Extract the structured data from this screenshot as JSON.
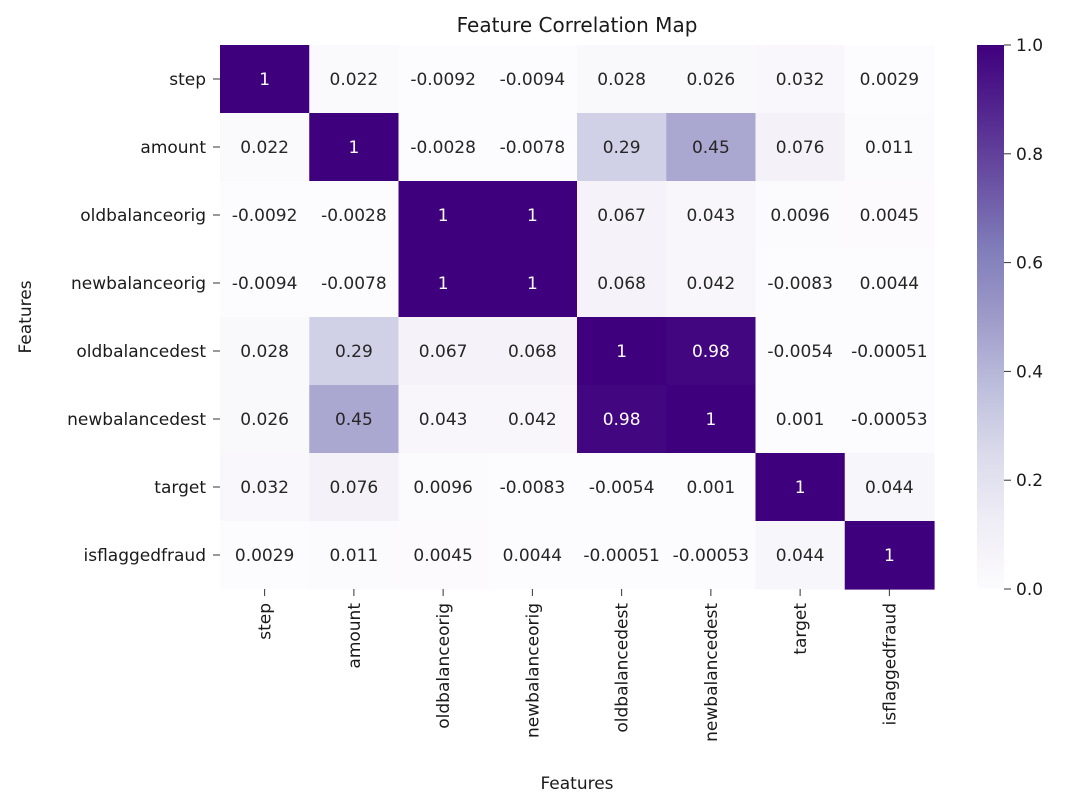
{
  "chart_data": {
    "type": "heatmap",
    "title": "Feature Correlation Map",
    "xlabel": "Features",
    "ylabel": "Features",
    "rows": [
      "step",
      "amount",
      "oldbalanceorig",
      "newbalanceorig",
      "oldbalancedest",
      "newbalancedest",
      "target",
      "isflaggedfraud"
    ],
    "cols": [
      "step",
      "amount",
      "oldbalanceorig",
      "newbalanceorig",
      "oldbalancedest",
      "newbalancedest",
      "target",
      "isflaggedfraud"
    ],
    "values": [
      [
        1,
        0.022,
        -0.0092,
        -0.0094,
        0.028,
        0.026,
        0.032,
        0.0029
      ],
      [
        0.022,
        1,
        -0.0028,
        -0.0078,
        0.29,
        0.45,
        0.076,
        0.011
      ],
      [
        -0.0092,
        -0.0028,
        1,
        1,
        0.067,
        0.043,
        0.0096,
        0.0045
      ],
      [
        -0.0094,
        -0.0078,
        1,
        1,
        0.068,
        0.042,
        -0.0083,
        0.0044
      ],
      [
        0.028,
        0.29,
        0.067,
        0.068,
        1,
        0.98,
        -0.0054,
        -0.00051
      ],
      [
        0.026,
        0.45,
        0.043,
        0.042,
        0.98,
        1,
        0.001,
        -0.00053
      ],
      [
        0.032,
        0.076,
        0.0096,
        -0.0083,
        -0.0054,
        0.001,
        1,
        0.044
      ],
      [
        0.0029,
        0.011,
        0.0045,
        0.0044,
        -0.00051,
        -0.00053,
        0.044,
        1
      ]
    ],
    "colorbar": {
      "range": [
        0,
        1
      ],
      "ticks": [
        "0.0",
        "0.2",
        "0.4",
        "0.6",
        "0.8",
        "1.0"
      ],
      "colormap": "Purples"
    }
  }
}
